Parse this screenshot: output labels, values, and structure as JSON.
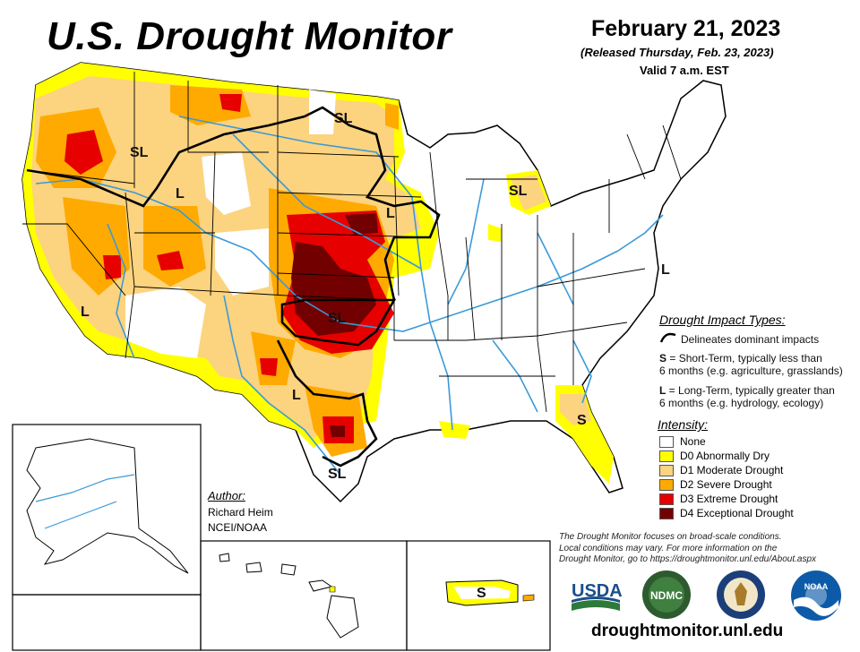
{
  "header": {
    "title": "U.S. Drought Monitor",
    "date": "February 21, 2023",
    "released": "(Released Thursday, Feb. 23, 2023)",
    "valid": "Valid 7 a.m. EST"
  },
  "map_labels": [
    "SL",
    "SL",
    "SL",
    "L",
    "L",
    "L",
    "SL",
    "L",
    "L",
    "SL",
    "S",
    "S"
  ],
  "impact_types": {
    "heading": "Drought Impact Types:",
    "delineates": "Delineates dominant impacts",
    "short_key": "S",
    "short_text_1": " = Short-Term, typically less than",
    "short_text_2": "6 months (e.g. agriculture, grasslands)",
    "long_key": "L",
    "long_text_1": " = Long-Term, typically greater than",
    "long_text_2": "6 months (e.g. hydrology, ecology)"
  },
  "intensity": {
    "heading": "Intensity:",
    "items": [
      {
        "label": "None",
        "color": "#ffffff"
      },
      {
        "label": "D0 Abnormally Dry",
        "color": "#ffff00"
      },
      {
        "label": "D1 Moderate Drought",
        "color": "#fcd37f"
      },
      {
        "label": "D2 Severe Drought",
        "color": "#ffaa00"
      },
      {
        "label": "D3 Extreme Drought",
        "color": "#e60000"
      },
      {
        "label": "D4 Exceptional Drought",
        "color": "#730000"
      }
    ]
  },
  "author": {
    "heading": "Author:",
    "name": "Richard Heim",
    "org": "NCEI/NOAA"
  },
  "disclaimer": {
    "line1": "The Drought Monitor focuses on broad-scale conditions.",
    "line2": "Local conditions may vary. For more information on the",
    "line3": "Drought Monitor, go to https://droughtmonitor.unl.edu/About.aspx"
  },
  "logos": {
    "usda": "USDA",
    "ndmc": "NDMC",
    "noaa": "NOAA"
  },
  "url": "droughtmonitor.unl.edu",
  "colors": {
    "river": "#3a9ad9",
    "border": "#000000"
  }
}
